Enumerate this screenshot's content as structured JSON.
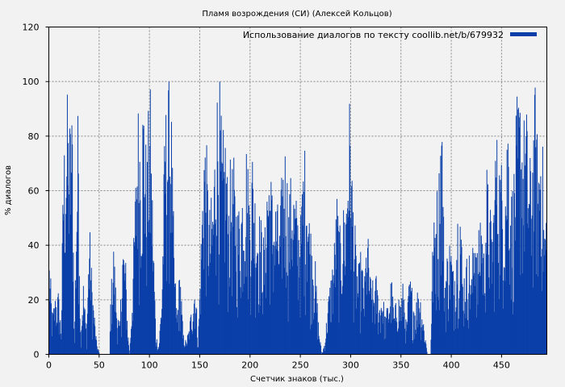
{
  "chart_data": {
    "type": "bar",
    "title": "Пламя возрождения (СИ) (Алексей Кольцов)",
    "xlabel": "Счетчик знаков (тыс.)",
    "ylabel": "% диалогов",
    "xlim": [
      0,
      495
    ],
    "ylim": [
      0,
      120
    ],
    "xticks": [
      0,
      50,
      100,
      150,
      200,
      250,
      300,
      350,
      400,
      450
    ],
    "yticks": [
      0,
      20,
      40,
      60,
      80,
      100,
      120
    ],
    "grid": true,
    "legend_position": "top-right",
    "series": [
      {
        "name": "Использование диалогов по тексту coollib.net/b/679932",
        "color": "#0a3fa8",
        "x_step": 0.5,
        "profile": [
          [
            0,
            38
          ],
          [
            3,
            15
          ],
          [
            6,
            22
          ],
          [
            9,
            24
          ],
          [
            12,
            10
          ],
          [
            14,
            75
          ],
          [
            17,
            92
          ],
          [
            20,
            88
          ],
          [
            23,
            92
          ],
          [
            25,
            5
          ],
          [
            27,
            60
          ],
          [
            29,
            100
          ],
          [
            31,
            10
          ],
          [
            34,
            28
          ],
          [
            37,
            8
          ],
          [
            40,
            50
          ],
          [
            43,
            25
          ],
          [
            47,
            5
          ],
          [
            50,
            0
          ],
          [
            60,
            0
          ],
          [
            61,
            22
          ],
          [
            64,
            42
          ],
          [
            67,
            20
          ],
          [
            70,
            10
          ],
          [
            73,
            45
          ],
          [
            76,
            35
          ],
          [
            78,
            10
          ],
          [
            80,
            0
          ],
          [
            82,
            20
          ],
          [
            85,
            55
          ],
          [
            88,
            95
          ],
          [
            91,
            88
          ],
          [
            94,
            100
          ],
          [
            97,
            70
          ],
          [
            100,
            100
          ],
          [
            103,
            55
          ],
          [
            106,
            8
          ],
          [
            109,
            3
          ],
          [
            112,
            25
          ],
          [
            115,
            90
          ],
          [
            118,
            100
          ],
          [
            121,
            100
          ],
          [
            124,
            40
          ],
          [
            127,
            15
          ],
          [
            130,
            35
          ],
          [
            133,
            8
          ],
          [
            136,
            5
          ],
          [
            139,
            10
          ],
          [
            142,
            20
          ],
          [
            145,
            30
          ],
          [
            148,
            5
          ],
          [
            151,
            45
          ],
          [
            154,
            88
          ],
          [
            157,
            70
          ],
          [
            160,
            52
          ],
          [
            163,
            60
          ],
          [
            166,
            100
          ],
          [
            169,
            100
          ],
          [
            172,
            75
          ],
          [
            175,
            85
          ],
          [
            178,
            60
          ],
          [
            181,
            72
          ],
          [
            184,
            68
          ],
          [
            187,
            55
          ],
          [
            190,
            58
          ],
          [
            193,
            70
          ],
          [
            196,
            80
          ],
          [
            199,
            62
          ],
          [
            202,
            78
          ],
          [
            205,
            60
          ],
          [
            208,
            55
          ],
          [
            211,
            50
          ],
          [
            214,
            42
          ],
          [
            217,
            75
          ],
          [
            220,
            70
          ],
          [
            223,
            55
          ],
          [
            226,
            60
          ],
          [
            229,
            48
          ],
          [
            232,
            75
          ],
          [
            235,
            80
          ],
          [
            238,
            58
          ],
          [
            241,
            70
          ],
          [
            244,
            62
          ],
          [
            247,
            55
          ],
          [
            250,
            52
          ],
          [
            253,
            78
          ],
          [
            256,
            75
          ],
          [
            259,
            50
          ],
          [
            262,
            45
          ],
          [
            265,
            30
          ],
          [
            268,
            10
          ],
          [
            271,
            0
          ],
          [
            274,
            5
          ],
          [
            277,
            20
          ],
          [
            280,
            30
          ],
          [
            283,
            40
          ],
          [
            286,
            60
          ],
          [
            289,
            45
          ],
          [
            292,
            55
          ],
          [
            295,
            60
          ],
          [
            298,
            100
          ],
          [
            301,
            70
          ],
          [
            304,
            45
          ],
          [
            307,
            30
          ],
          [
            310,
            40
          ],
          [
            313,
            25
          ],
          [
            316,
            50
          ],
          [
            319,
            30
          ],
          [
            322,
            25
          ],
          [
            325,
            30
          ],
          [
            328,
            20
          ],
          [
            331,
            25
          ],
          [
            334,
            15
          ],
          [
            337,
            20
          ],
          [
            340,
            30
          ],
          [
            343,
            15
          ],
          [
            346,
            25
          ],
          [
            349,
            20
          ],
          [
            352,
            28
          ],
          [
            355,
            10
          ],
          [
            358,
            30
          ],
          [
            361,
            25
          ],
          [
            364,
            18
          ],
          [
            367,
            28
          ],
          [
            370,
            20
          ],
          [
            373,
            10
          ],
          [
            376,
            0
          ],
          [
            379,
            0
          ],
          [
            381,
            40
          ],
          [
            384,
            60
          ],
          [
            387,
            65
          ],
          [
            390,
            100
          ],
          [
            393,
            30
          ],
          [
            396,
            40
          ],
          [
            399,
            45
          ],
          [
            402,
            30
          ],
          [
            405,
            50
          ],
          [
            408,
            68
          ],
          [
            411,
            30
          ],
          [
            414,
            35
          ],
          [
            417,
            40
          ],
          [
            420,
            30
          ],
          [
            423,
            60
          ],
          [
            426,
            35
          ],
          [
            429,
            60
          ],
          [
            432,
            40
          ],
          [
            435,
            70
          ],
          [
            438,
            55
          ],
          [
            441,
            50
          ],
          [
            444,
            85
          ],
          [
            447,
            75
          ],
          [
            450,
            72
          ],
          [
            453,
            70
          ],
          [
            456,
            95
          ],
          [
            459,
            60
          ],
          [
            462,
            70
          ],
          [
            465,
            90
          ],
          [
            468,
            100
          ],
          [
            471,
            85
          ],
          [
            474,
            95
          ],
          [
            477,
            70
          ],
          [
            480,
            80
          ],
          [
            483,
            100
          ],
          [
            486,
            75
          ],
          [
            489,
            95
          ],
          [
            492,
            50
          ],
          [
            495,
            60
          ]
        ]
      }
    ]
  }
}
